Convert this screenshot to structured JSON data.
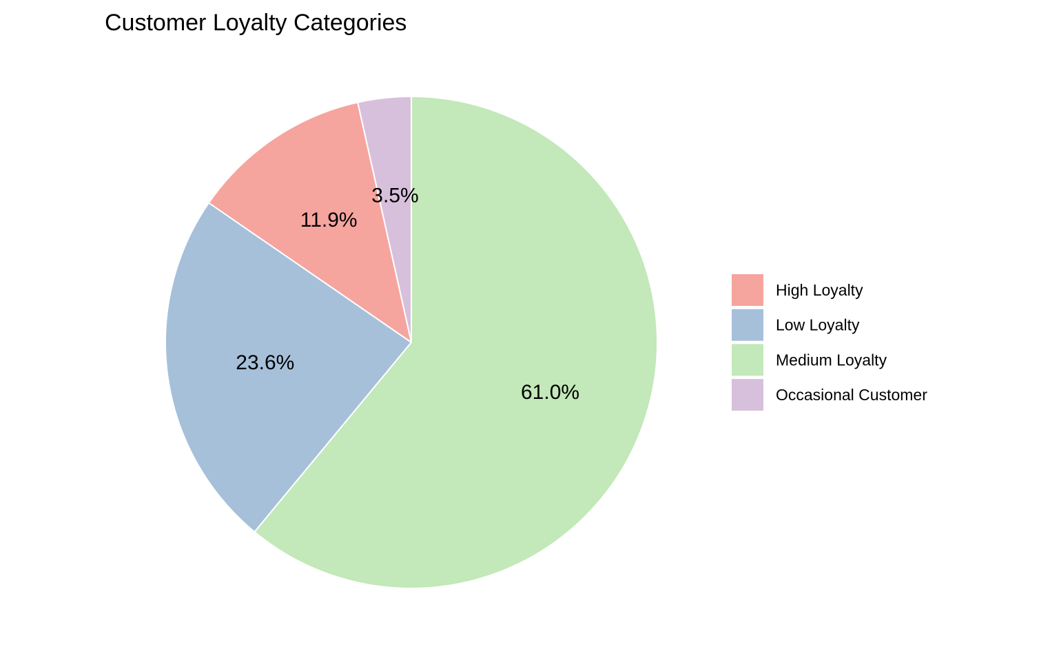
{
  "chart_data": {
    "type": "pie",
    "title": "Customer Loyalty Categories",
    "categories": [
      "High Loyalty",
      "Low Loyalty",
      "Medium Loyalty",
      "Occasional Customer"
    ],
    "values": [
      11.9,
      23.6,
      61.0,
      3.5
    ],
    "value_labels": [
      "11.9%",
      "23.6%",
      "61.0%",
      "3.5%"
    ],
    "colors": [
      "#F6A49E",
      "#A6C0DA",
      "#C3E8B9",
      "#D7C0DC"
    ],
    "legend_position": "right",
    "start": "top",
    "direction": "counterclockwise",
    "slice_order": [
      "Occasional Customer",
      "High Loyalty",
      "Low Loyalty",
      "Medium Loyalty"
    ]
  }
}
